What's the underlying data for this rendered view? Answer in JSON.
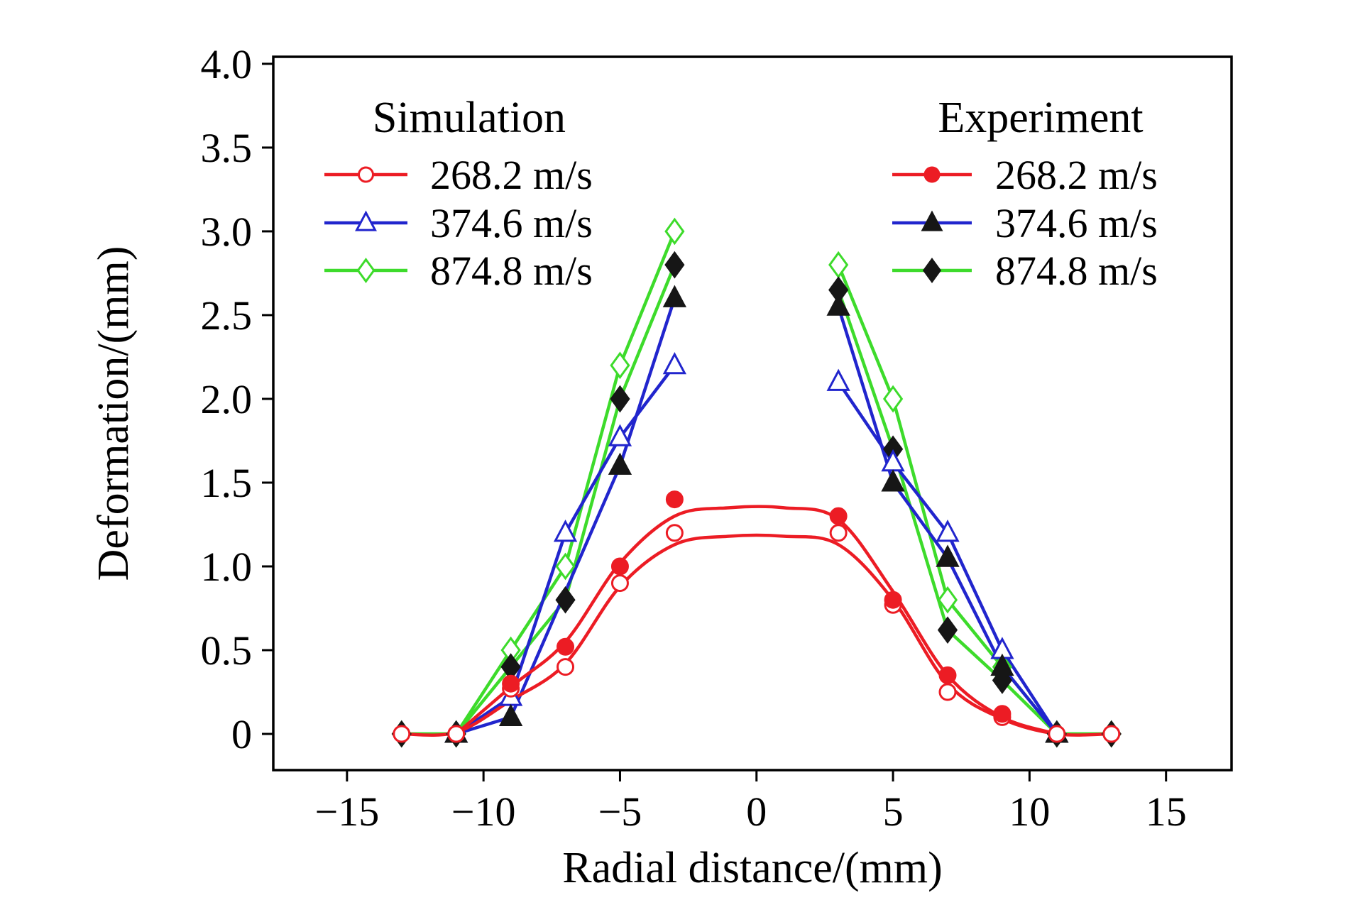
{
  "chart_data": {
    "type": "line",
    "title": "",
    "xlabel": "Radial distance/(mm)",
    "ylabel": "Deformation/(mm)",
    "xlim": [
      -17.7,
      17.4
    ],
    "ylim": [
      -0.216,
      4.042
    ],
    "xticks": [
      -15,
      -10,
      -5,
      0,
      5,
      10,
      15
    ],
    "xtick_labels": [
      "−15",
      "−10",
      "−5",
      "0",
      "5",
      "10",
      "15"
    ],
    "yticks": [
      0,
      0.5,
      1.0,
      1.5,
      2.0,
      2.5,
      3.0,
      3.5,
      4.0
    ],
    "ytick_labels": [
      "0",
      "0.5",
      "1.0",
      "1.5",
      "2.0",
      "2.5",
      "3.0",
      "3.5",
      "4.0"
    ],
    "grid": false,
    "colors": {
      "red": "#ec1c24",
      "blue": "#2125cd",
      "green": "#3ddb2b",
      "black": "#161616",
      "axis": "#000000"
    },
    "legends": [
      {
        "title": "Simulation",
        "position": "top-left",
        "entries": [
          {
            "label": "268.2 m/s",
            "line_color": "#ec1c24",
            "marker": "circle",
            "fill": "open",
            "marker_color": "#ec1c24"
          },
          {
            "label": "374.6 m/s",
            "line_color": "#2125cd",
            "marker": "triangle",
            "fill": "open",
            "marker_color": "#2125cd"
          },
          {
            "label": "874.8 m/s",
            "line_color": "#3ddb2b",
            "marker": "diamond",
            "fill": "open",
            "marker_color": "#3ddb2b"
          }
        ]
      },
      {
        "title": "Experiment",
        "position": "top-right",
        "entries": [
          {
            "label": "268.2 m/s",
            "line_color": "#ec1c24",
            "marker": "circle",
            "fill": "filled",
            "marker_color": "#ec1c24"
          },
          {
            "label": "374.6 m/s",
            "line_color": "#2125cd",
            "marker": "triangle",
            "fill": "filled",
            "marker_color": "#161616"
          },
          {
            "label": "874.8 m/s",
            "line_color": "#3ddb2b",
            "marker": "diamond",
            "fill": "filled",
            "marker_color": "#161616"
          }
        ]
      }
    ],
    "series": [
      {
        "id": "sim-874",
        "name": "Simulation 874.8 m/s",
        "line_color": "#3ddb2b",
        "marker": "diamond",
        "fill": "open",
        "marker_color": "#3ddb2b",
        "smooth": false,
        "x": [
          -13,
          -11,
          -9,
          -7,
          -5,
          -3,
          null,
          3,
          5,
          7,
          9,
          11,
          13
        ],
        "y": [
          0,
          0,
          0.5,
          1.0,
          2.2,
          3.0,
          null,
          2.8,
          2.0,
          0.8,
          0.4,
          0,
          0
        ]
      },
      {
        "id": "exp-874",
        "name": "Experiment 874.8 m/s",
        "line_color": "#3ddb2b",
        "marker": "diamond",
        "fill": "filled",
        "marker_color": "#161616",
        "smooth": false,
        "x": [
          -13,
          -11,
          -9,
          -7,
          -5,
          -3,
          null,
          3,
          5,
          7,
          9,
          11,
          13
        ],
        "y": [
          0,
          0,
          0.4,
          0.8,
          2.0,
          2.8,
          null,
          2.65,
          1.7,
          0.62,
          0.32,
          0,
          0
        ]
      },
      {
        "id": "sim-374",
        "name": "Simulation 374.6 m/s",
        "line_color": "#2125cd",
        "marker": "triangle",
        "fill": "open",
        "marker_color": "#2125cd",
        "smooth": false,
        "x": [
          -11,
          -9,
          -7,
          -5,
          -3,
          null,
          3,
          5,
          7,
          9,
          11
        ],
        "y": [
          0,
          0.22,
          1.2,
          1.77,
          2.2,
          null,
          2.1,
          1.62,
          1.2,
          0.5,
          0
        ]
      },
      {
        "id": "exp-374",
        "name": "Experiment 374.6 m/s",
        "line_color": "#2125cd",
        "marker": "triangle",
        "fill": "filled",
        "marker_color": "#161616",
        "smooth": false,
        "x": [
          -11,
          -9,
          -5,
          -3,
          null,
          3,
          5,
          7,
          9,
          11
        ],
        "y": [
          0,
          0.1,
          1.6,
          2.6,
          null,
          2.55,
          1.5,
          1.05,
          0.4,
          0
        ]
      },
      {
        "id": "sim-268",
        "name": "Simulation 268.2 m/s",
        "line_color": "#ec1c24",
        "marker": "circle",
        "fill": "open",
        "marker_color": "#ec1c24",
        "smooth": true,
        "x": [
          -13,
          -11,
          -9,
          -7,
          -5,
          -3,
          3,
          5,
          7,
          9,
          11,
          13
        ],
        "y": [
          0,
          0,
          0.27,
          0.4,
          0.9,
          1.2,
          1.2,
          0.77,
          0.25,
          0.1,
          0,
          0
        ],
        "line_x": [
          -13,
          -11,
          -9,
          -7,
          -5,
          -3,
          -1,
          1,
          3,
          5,
          7,
          9,
          11,
          13
        ],
        "line_y": [
          0,
          0.01,
          0.2,
          0.42,
          0.88,
          1.13,
          1.18,
          1.18,
          1.13,
          0.8,
          0.3,
          0.09,
          0,
          0
        ]
      },
      {
        "id": "exp-268",
        "name": "Experiment 268.2 m/s",
        "line_color": "#ec1c24",
        "marker": "circle",
        "fill": "filled",
        "marker_color": "#ec1c24",
        "smooth": true,
        "x": [
          -9,
          -7,
          -5,
          -3,
          3,
          5,
          7,
          9
        ],
        "y": [
          0.3,
          0.52,
          1.0,
          1.4,
          1.3,
          0.8,
          0.35,
          0.12
        ],
        "line_x": [
          -11,
          -9,
          -7,
          -5,
          -3,
          -1,
          1,
          3,
          5,
          7,
          9,
          11
        ],
        "line_y": [
          0,
          0.28,
          0.55,
          1.02,
          1.3,
          1.35,
          1.35,
          1.28,
          0.85,
          0.35,
          0.1,
          0
        ]
      }
    ]
  }
}
